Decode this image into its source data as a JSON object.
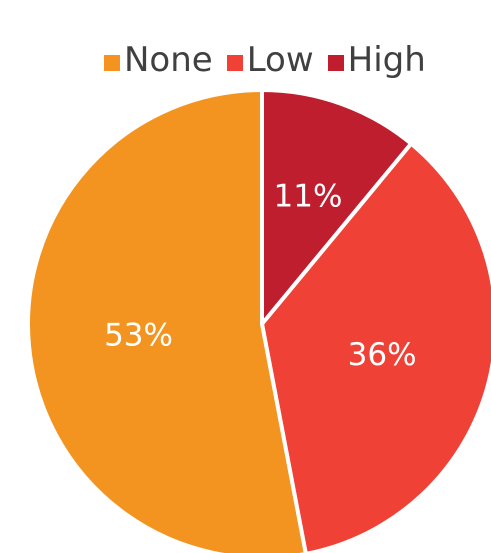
{
  "chart_data": {
    "type": "pie",
    "title": "",
    "legend_position": "top",
    "categories": [
      "None",
      "Low",
      "High"
    ],
    "values": [
      53,
      36,
      11
    ],
    "value_labels": [
      "53%",
      "36%",
      "11%"
    ],
    "colors": [
      "#F39320",
      "#EF4136",
      "#BE1E2D"
    ],
    "legend": [
      {
        "label": "None",
        "color": "#F39320"
      },
      {
        "label": "Low",
        "color": "#EF4136"
      },
      {
        "label": "High",
        "color": "#BE1E2D"
      }
    ]
  }
}
